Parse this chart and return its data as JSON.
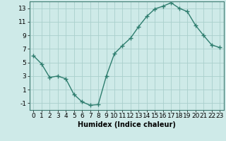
{
  "x": [
    0,
    1,
    2,
    3,
    4,
    5,
    6,
    7,
    8,
    9,
    10,
    11,
    12,
    13,
    14,
    15,
    16,
    17,
    18,
    19,
    20,
    21,
    22,
    23
  ],
  "y": [
    6.0,
    4.8,
    2.8,
    3.0,
    2.6,
    0.3,
    -0.8,
    -1.3,
    -1.2,
    3.0,
    6.3,
    7.5,
    8.6,
    10.3,
    11.8,
    12.9,
    13.3,
    13.8,
    13.0,
    12.5,
    10.5,
    9.0,
    7.6,
    7.2
  ],
  "line_color": "#2e7d6e",
  "marker": "+",
  "marker_size": 4,
  "bg_color": "#ceeae8",
  "grid_color": "#aacfcc",
  "xlabel": "Humidex (Indice chaleur)",
  "xlim": [
    -0.5,
    23.5
  ],
  "ylim": [
    -2,
    14
  ],
  "yticks": [
    -1,
    1,
    3,
    5,
    7,
    9,
    11,
    13
  ],
  "xticks": [
    0,
    1,
    2,
    3,
    4,
    5,
    6,
    7,
    8,
    9,
    10,
    11,
    12,
    13,
    14,
    15,
    16,
    17,
    18,
    19,
    20,
    21,
    22,
    23
  ],
  "xlabel_fontsize": 7,
  "tick_fontsize": 6.5,
  "line_width": 1.0
}
